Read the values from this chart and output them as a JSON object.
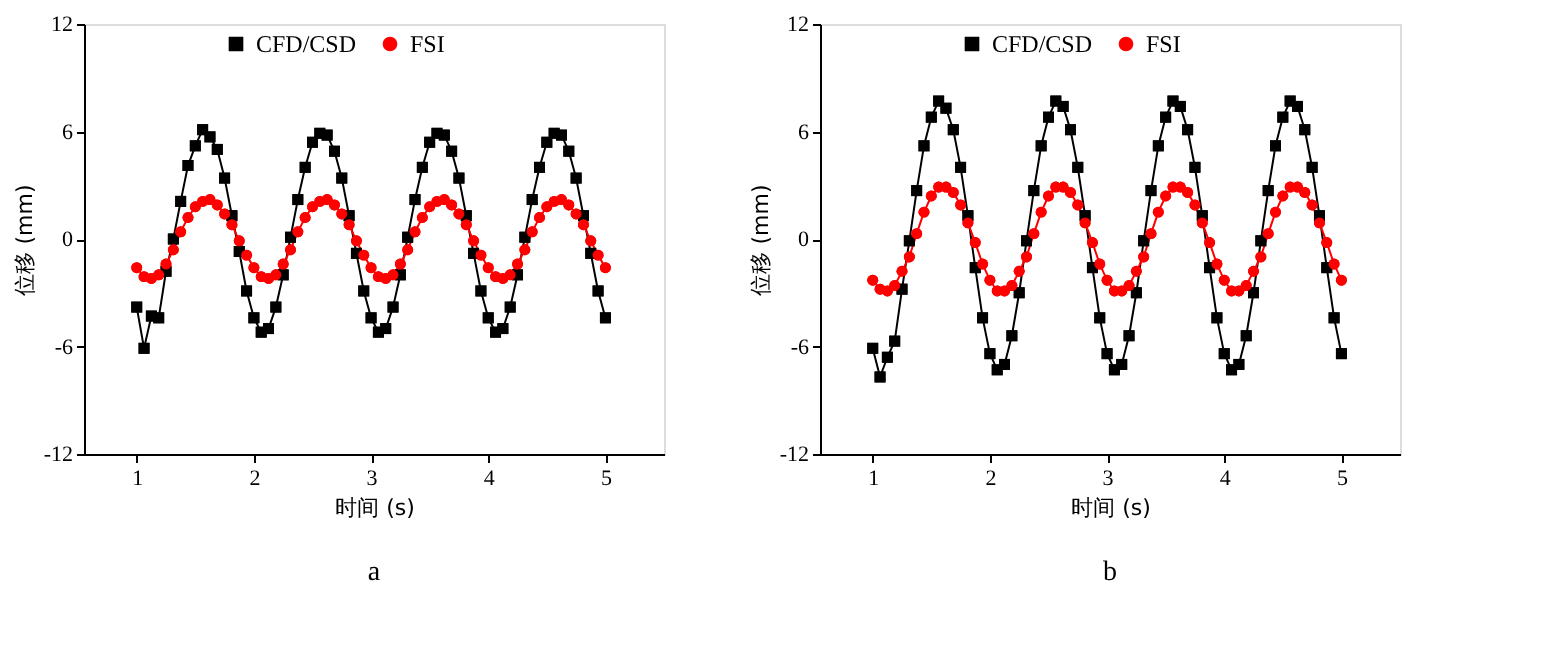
{
  "chart_data": [
    {
      "type": "line",
      "xlabel": "时间 (s)",
      "ylabel": "位移 (mm)",
      "annotations": [
        "a"
      ],
      "grid": false,
      "legend": "top",
      "line_style": "solid",
      "xlim": [
        0.55,
        5.5
      ],
      "xticks": [
        1,
        2,
        3,
        4,
        5
      ],
      "ylim": [
        -12,
        12
      ],
      "yticks": [
        -12,
        -6,
        0,
        6,
        12
      ],
      "x": [
        1,
        1.0625,
        1.125,
        1.1875,
        1.25,
        1.3125,
        1.375,
        1.4375,
        1.5,
        1.5625,
        1.625,
        1.6875,
        1.75,
        1.8125,
        1.875,
        1.9375,
        2,
        2.0625,
        2.125,
        2.1875,
        2.25,
        2.3125,
        2.375,
        2.4375,
        2.5,
        2.5625,
        2.625,
        2.6875,
        2.75,
        2.8125,
        2.875,
        2.9375,
        3,
        3.0625,
        3.125,
        3.1875,
        3.25,
        3.3125,
        3.375,
        3.4375,
        3.5,
        3.5625,
        3.625,
        3.6875,
        3.75,
        3.8125,
        3.875,
        3.9375,
        4,
        4.0625,
        4.125,
        4.1875,
        4.25,
        4.3125,
        4.375,
        4.4375,
        4.5,
        4.5625,
        4.625,
        4.6875,
        4.75,
        4.8125,
        4.875,
        4.9375,
        5
      ],
      "series": [
        {
          "name": "CFD/CSD",
          "color": "#000000",
          "marker": "square",
          "values": [
            -3.8,
            -6.1,
            -4.3,
            -4.4,
            -1.8,
            0,
            2.1,
            4.1,
            5.2,
            6.1,
            5.7,
            5.0,
            3.4,
            1.3,
            -0.7,
            -2.9,
            -4.4,
            -5.2,
            -5.0,
            -3.8,
            -2.0,
            0.1,
            2.2,
            4.0,
            5.4,
            5.9,
            5.8,
            4.9,
            3.4,
            1.3,
            -0.8,
            -2.9,
            -4.4,
            -5.2,
            -5.0,
            -3.8,
            -2.0,
            0.1,
            2.2,
            4.0,
            5.4,
            5.9,
            5.8,
            4.9,
            3.4,
            1.3,
            -0.8,
            -2.9,
            -4.4,
            -5.2,
            -5.0,
            -3.8,
            -2.0,
            0.1,
            2.2,
            4.0,
            5.4,
            5.9,
            5.8,
            4.9,
            3.4,
            1.3,
            -0.8,
            -2.9,
            -4.4
          ]
        },
        {
          "name": "FSI",
          "color": "#ff0000",
          "marker": "circle",
          "values": [
            -1.6,
            -2.1,
            -2.2,
            -2.0,
            -1.4,
            -0.6,
            0.4,
            1.2,
            1.8,
            2.1,
            2.2,
            1.9,
            1.4,
            0.8,
            -0.1,
            -0.9,
            -1.6,
            -2.1,
            -2.2,
            -2.0,
            -1.4,
            -0.6,
            0.4,
            1.2,
            1.8,
            2.1,
            2.2,
            1.9,
            1.4,
            0.8,
            -0.1,
            -0.9,
            -1.6,
            -2.1,
            -2.2,
            -2.0,
            -1.4,
            -0.6,
            0.4,
            1.2,
            1.8,
            2.1,
            2.2,
            1.9,
            1.4,
            0.8,
            -0.1,
            -0.9,
            -1.6,
            -2.1,
            -2.2,
            -2.0,
            -1.4,
            -0.6,
            0.4,
            1.2,
            1.8,
            2.1,
            2.2,
            1.9,
            1.4,
            0.8,
            -0.1,
            -0.9,
            -1.6
          ]
        }
      ]
    },
    {
      "type": "line",
      "xlabel": "时间 (s)",
      "ylabel": "位移 (mm)",
      "annotations": [
        "b"
      ],
      "grid": false,
      "legend": "top",
      "line_style": "solid",
      "xlim": [
        0.55,
        5.5
      ],
      "xticks": [
        1,
        2,
        3,
        4,
        5
      ],
      "ylim": [
        -12,
        12
      ],
      "yticks": [
        -12,
        -6,
        0,
        6,
        12
      ],
      "x": [
        1,
        1.0625,
        1.125,
        1.1875,
        1.25,
        1.3125,
        1.375,
        1.4375,
        1.5,
        1.5625,
        1.625,
        1.6875,
        1.75,
        1.8125,
        1.875,
        1.9375,
        2,
        2.0625,
        2.125,
        2.1875,
        2.25,
        2.3125,
        2.375,
        2.4375,
        2.5,
        2.5625,
        2.625,
        2.6875,
        2.75,
        2.8125,
        2.875,
        2.9375,
        3,
        3.0625,
        3.125,
        3.1875,
        3.25,
        3.3125,
        3.375,
        3.4375,
        3.5,
        3.5625,
        3.625,
        3.6875,
        3.75,
        3.8125,
        3.875,
        3.9375,
        4,
        4.0625,
        4.125,
        4.1875,
        4.25,
        4.3125,
        4.375,
        4.4375,
        4.5,
        4.5625,
        4.625,
        4.6875,
        4.75,
        4.8125,
        4.875,
        4.9375,
        5
      ],
      "series": [
        {
          "name": "CFD/CSD",
          "color": "#000000",
          "marker": "square",
          "values": [
            -6.1,
            -7.7,
            -6.6,
            -5.7,
            -2.8,
            -0.1,
            2.7,
            5.2,
            6.8,
            7.7,
            7.3,
            6.1,
            4.0,
            1.3,
            -1.6,
            -4.4,
            -6.4,
            -7.3,
            -7.0,
            -5.4,
            -3.0,
            -0.1,
            2.7,
            5.2,
            6.8,
            7.7,
            7.4,
            6.1,
            4.0,
            1.3,
            -1.6,
            -4.4,
            -6.4,
            -7.3,
            -7.0,
            -5.4,
            -3.0,
            -0.1,
            2.7,
            5.2,
            6.8,
            7.7,
            7.4,
            6.1,
            4.0,
            1.3,
            -1.6,
            -4.4,
            -6.4,
            -7.3,
            -7.0,
            -5.4,
            -3.0,
            -0.1,
            2.7,
            5.2,
            6.8,
            7.7,
            7.4,
            6.1,
            4.0,
            1.3,
            -1.6,
            -4.4,
            -6.4
          ]
        },
        {
          "name": "FSI",
          "color": "#ff0000",
          "marker": "circle",
          "values": [
            -2.3,
            -2.8,
            -2.9,
            -2.6,
            -1.8,
            -1.0,
            0.3,
            1.5,
            2.4,
            2.9,
            2.9,
            2.6,
            1.9,
            0.9,
            -0.2,
            -1.4,
            -2.3,
            -2.9,
            -2.9,
            -2.6,
            -1.8,
            -1.0,
            0.3,
            1.5,
            2.4,
            2.9,
            2.9,
            2.6,
            1.9,
            0.9,
            -0.2,
            -1.4,
            -2.3,
            -2.9,
            -2.9,
            -2.6,
            -1.8,
            -1.0,
            0.3,
            1.5,
            2.4,
            2.9,
            2.9,
            2.6,
            1.9,
            0.9,
            -0.2,
            -1.4,
            -2.3,
            -2.9,
            -2.9,
            -2.6,
            -1.8,
            -1.0,
            0.3,
            1.5,
            2.4,
            2.9,
            2.9,
            2.6,
            1.9,
            0.9,
            -0.2,
            -1.4,
            -2.3
          ]
        }
      ]
    }
  ]
}
